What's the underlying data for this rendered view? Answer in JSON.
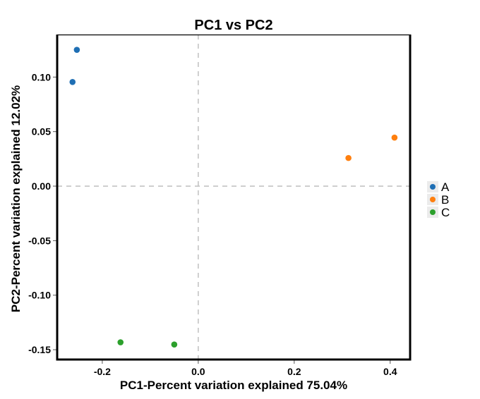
{
  "chart_data": {
    "type": "scatter",
    "title": "PC1 vs PC2",
    "xlabel": "PC1-Percent variation explained 75.04%",
    "ylabel": "PC2-Percent variation explained 12.02%",
    "xlim": [
      -0.294,
      0.443
    ],
    "ylim": [
      -0.159,
      0.139
    ],
    "xticks": [
      -0.2,
      0.0,
      0.2,
      0.4
    ],
    "xtick_labels": [
      "-0.2",
      "0.0",
      "0.2",
      "0.4"
    ],
    "yticks": [
      0.1,
      0.05,
      0.0,
      -0.05,
      -0.1,
      -0.15
    ],
    "ytick_labels": [
      "0.10",
      "0.05",
      "0.00",
      "-0.05",
      "-0.10",
      "-0.15"
    ],
    "grid": false,
    "reference_lines": {
      "x": 0,
      "y": 0,
      "style": "dashed"
    },
    "legend_position": "right",
    "series": [
      {
        "name": "A",
        "color": "#1f6fb4",
        "points": [
          [
            -0.253,
            0.125
          ],
          [
            -0.262,
            0.0955
          ]
        ]
      },
      {
        "name": "B",
        "color": "#ff7f0e",
        "points": [
          [
            0.313,
            0.0258
          ],
          [
            0.409,
            0.0445
          ]
        ]
      },
      {
        "name": "C",
        "color": "#2ca02c",
        "points": [
          [
            -0.162,
            -0.1432
          ],
          [
            -0.05,
            -0.1452
          ]
        ]
      }
    ]
  }
}
